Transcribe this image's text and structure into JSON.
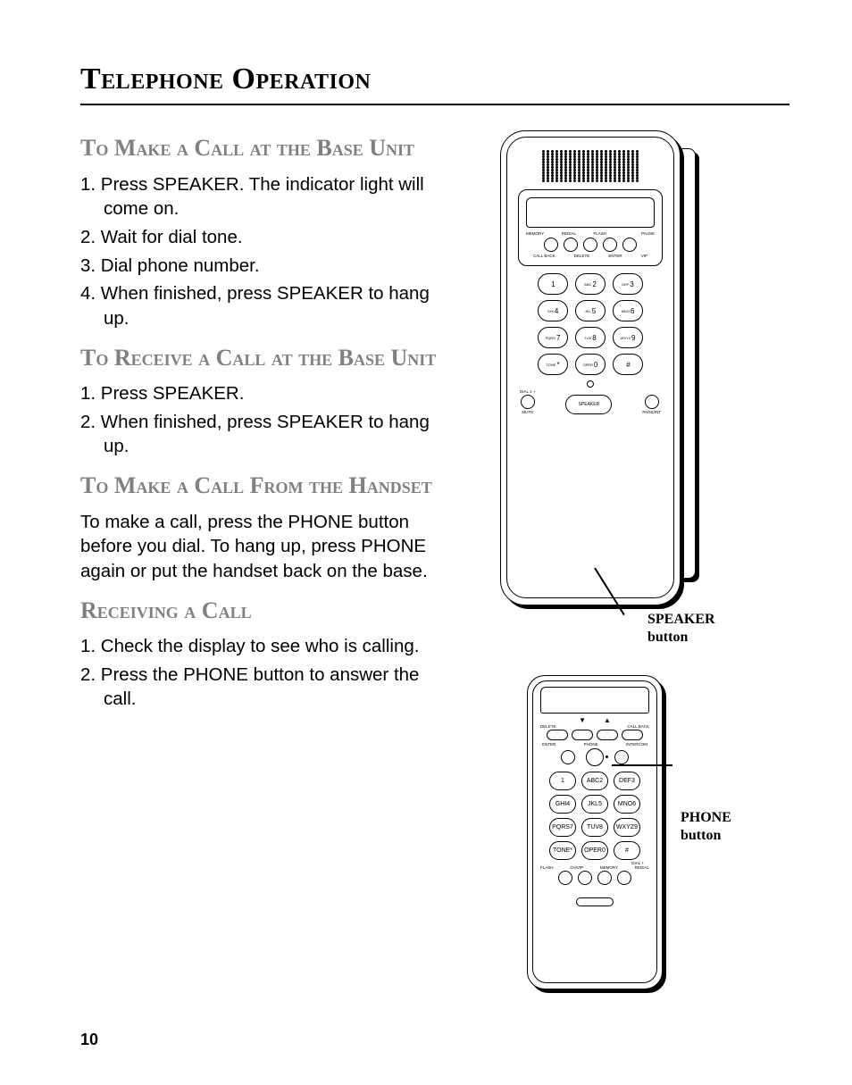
{
  "page_number": "10",
  "title": "Telephone Operation",
  "sections": [
    {
      "heading": "To Make a Call at the Base Unit",
      "items": [
        "1. Press SPEAKER. The indicator light will come on.",
        "2. Wait for dial tone.",
        "3. Dial phone number.",
        "4. When finished, press SPEAKER to hang up."
      ]
    },
    {
      "heading": "To Receive a Call at the Base Unit",
      "items": [
        "1. Press SPEAKER.",
        "2. When finished, press SPEAKER to hang up."
      ]
    },
    {
      "heading": "To Make a Call From the Handset",
      "para": "To make a call, press the PHONE button before you dial.  To hang up, press PHONE again or put the handset back on the base."
    },
    {
      "heading": "Receiving a Call",
      "items": [
        "1. Check the display to see who is calling.",
        "2. Press the PHONE button to answer the call."
      ]
    }
  ],
  "callouts": {
    "speaker": "SPEAKER button",
    "phone": "PHONE button"
  },
  "base_unit": {
    "top_labels": [
      "MEMORY",
      "REDIAL",
      "FLASH",
      "",
      "PAUSE"
    ],
    "bot_labels": [
      "CALL BACK",
      "DELETE",
      "ENTER",
      "VIP"
    ],
    "keys": [
      [
        "",
        "1"
      ],
      [
        "ABC",
        "2"
      ],
      [
        "DEF",
        "3"
      ],
      [
        "GHI",
        "4"
      ],
      [
        "JKL",
        "5"
      ],
      [
        "MNO",
        "6"
      ],
      [
        "PQRS",
        "7"
      ],
      [
        "TUV",
        "8"
      ],
      [
        "WXYZ",
        "9"
      ],
      [
        "TONE",
        "*"
      ],
      [
        "OPER",
        "0"
      ],
      [
        "",
        "#"
      ]
    ],
    "speaker_btn": "SPEAKER",
    "left_label": "DIAL 1 +",
    "left_under": "MUTE",
    "right_under": "PAGE/INT"
  },
  "handset": {
    "top_pill_labels": [
      "DELETE",
      "",
      "",
      "CALL BACK"
    ],
    "mid_labels": [
      "ENTER",
      "PHONE",
      "INTERCOM"
    ],
    "keys": [
      [
        "",
        "1"
      ],
      [
        "ABC",
        "2"
      ],
      [
        "DEF",
        "3"
      ],
      [
        "GHI",
        "4"
      ],
      [
        "JKL",
        "5"
      ],
      [
        "MNO",
        "6"
      ],
      [
        "PQRS",
        "7"
      ],
      [
        "TUV",
        "8"
      ],
      [
        "WXYZ",
        "9"
      ],
      [
        "TONE",
        "*"
      ],
      [
        "OPER",
        "0"
      ],
      [
        "",
        "#"
      ]
    ],
    "dial_label": "DIAL +",
    "bot_labels": [
      "FLASH",
      "CH/VIP",
      "MEMORY",
      "REDIAL"
    ]
  }
}
